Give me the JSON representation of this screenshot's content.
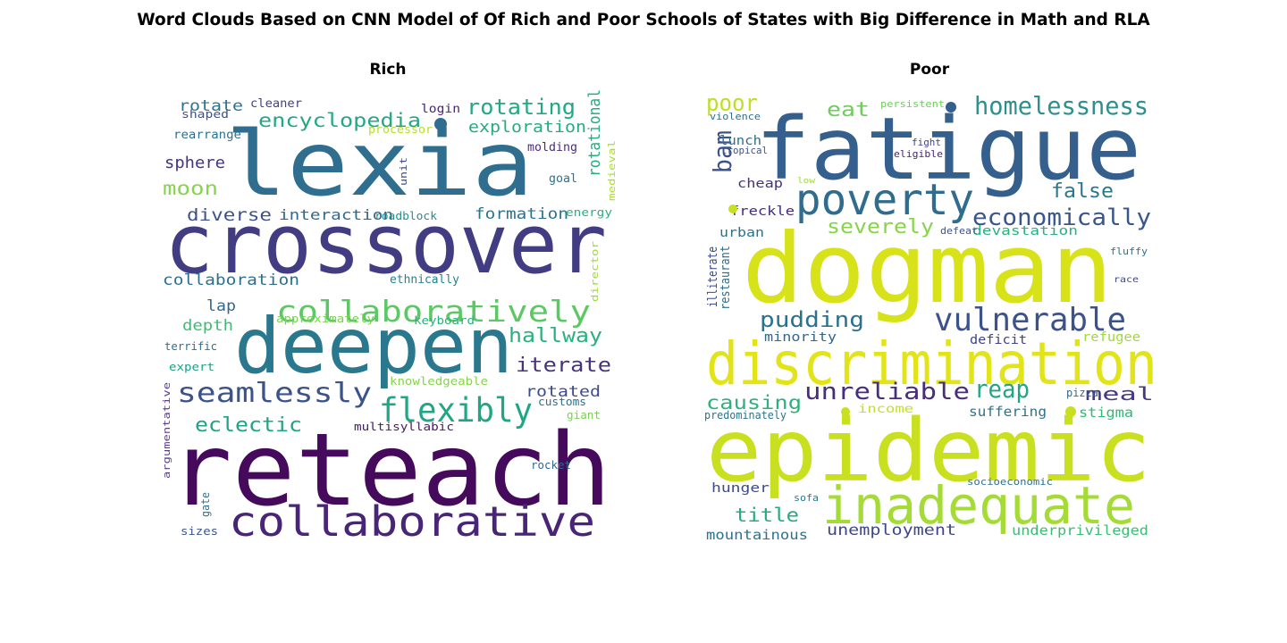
{
  "title": "Word Clouds Based on CNN Model of Of Rich and Poor Schools of States with Big Difference in Math and RLA",
  "chart_data": [
    {
      "type": "wordcloud",
      "title": "Rich",
      "words": [
        {
          "text": "reteach",
          "color": "#450a5b"
        },
        {
          "text": "lexia",
          "color": "#2f6e8e"
        },
        {
          "text": "crossover",
          "color": "#423c82"
        },
        {
          "text": "deepen",
          "color": "#2a788e"
        },
        {
          "text": "collaborative",
          "color": "#482576"
        },
        {
          "text": "collaboratively",
          "color": "#5cc863"
        },
        {
          "text": "flexibly",
          "color": "#21a685"
        },
        {
          "text": "seamlessly",
          "color": "#3b528b"
        },
        {
          "text": "encyclopedia",
          "color": "#23a884"
        },
        {
          "text": "rotating",
          "color": "#22a884"
        },
        {
          "text": "hallway",
          "color": "#2ab07f"
        },
        {
          "text": "iterate",
          "color": "#46337e"
        },
        {
          "text": "eclectic",
          "color": "#20a386"
        },
        {
          "text": "exploration",
          "color": "#25ab82"
        },
        {
          "text": "rotational",
          "color": "#27ad81"
        },
        {
          "text": "rotated",
          "color": "#3e4a89"
        },
        {
          "text": "moon",
          "color": "#86d549"
        },
        {
          "text": "diverse",
          "color": "#3b528b"
        },
        {
          "text": "sphere",
          "color": "#46337e"
        },
        {
          "text": "interaction",
          "color": "#31688e"
        },
        {
          "text": "formation",
          "color": "#2c728e"
        },
        {
          "text": "collaboration",
          "color": "#2d708e"
        },
        {
          "text": "depth",
          "color": "#3dbc74"
        },
        {
          "text": "lap",
          "color": "#31688e"
        },
        {
          "text": "rotate",
          "color": "#2c728e"
        },
        {
          "text": "cleaner",
          "color": "#404387"
        },
        {
          "text": "shaped",
          "color": "#3b528b"
        },
        {
          "text": "login",
          "color": "#482576"
        },
        {
          "text": "processor",
          "color": "#b5de2b"
        },
        {
          "text": "rearrange",
          "color": "#2c728e"
        },
        {
          "text": "molding",
          "color": "#472d7b"
        },
        {
          "text": "goal",
          "color": "#2c728e"
        },
        {
          "text": "unit",
          "color": "#3e4a89"
        },
        {
          "text": "medieval",
          "color": "#addc30"
        },
        {
          "text": "roadblock",
          "color": "#21918c"
        },
        {
          "text": "energy",
          "color": "#2ab07f"
        },
        {
          "text": "ethnically",
          "color": "#26828e"
        },
        {
          "text": "director",
          "color": "#a0da39"
        },
        {
          "text": "approximately",
          "color": "#7ad151"
        },
        {
          "text": "keyboard",
          "color": "#2ab07f"
        },
        {
          "text": "terrific",
          "color": "#2c728e"
        },
        {
          "text": "expert",
          "color": "#1fa088"
        },
        {
          "text": "knowledgeable",
          "color": "#86d549"
        },
        {
          "text": "customs",
          "color": "#2c728e"
        },
        {
          "text": "giant",
          "color": "#7ad151"
        },
        {
          "text": "multisyllabic",
          "color": "#48186a"
        },
        {
          "text": "argumentative",
          "color": "#5c3c8c"
        },
        {
          "text": "rocket",
          "color": "#31688e"
        },
        {
          "text": "gate",
          "color": "#2c728e"
        },
        {
          "text": "sizes",
          "color": "#39568c"
        }
      ]
    },
    {
      "type": "wordcloud",
      "title": "Poor",
      "words": [
        {
          "text": "epidemic",
          "color": "#c8e020"
        },
        {
          "text": "dogman",
          "color": "#d8e219"
        },
        {
          "text": "fatigue",
          "color": "#355f8d"
        },
        {
          "text": "discrimination",
          "color": "#e2e418"
        },
        {
          "text": "inadequate",
          "color": "#a5db36"
        },
        {
          "text": "poverty",
          "color": "#2f6c8e"
        },
        {
          "text": "vulnerable",
          "color": "#3b528b"
        },
        {
          "text": "homelessness",
          "color": "#2d908d"
        },
        {
          "text": "economically",
          "color": "#39568c"
        },
        {
          "text": "unreliable",
          "color": "#472d7b"
        },
        {
          "text": "pudding",
          "color": "#2c728e"
        },
        {
          "text": "reap",
          "color": "#21a685"
        },
        {
          "text": "severely",
          "color": "#86d549"
        },
        {
          "text": "false",
          "color": "#2a788e"
        },
        {
          "text": "bam",
          "color": "#3b528b"
        },
        {
          "text": "poor",
          "color": "#bddf26"
        },
        {
          "text": "eat",
          "color": "#6ccd5a"
        },
        {
          "text": "causing",
          "color": "#2db27d"
        },
        {
          "text": "meal",
          "color": "#443983"
        },
        {
          "text": "title",
          "color": "#25ab82"
        },
        {
          "text": "unemployment",
          "color": "#3f4788"
        },
        {
          "text": "mountainous",
          "color": "#2c728e"
        },
        {
          "text": "underprivileged",
          "color": "#3dbc74"
        },
        {
          "text": "hunger",
          "color": "#3e4a89"
        },
        {
          "text": "suffering",
          "color": "#2c728e"
        },
        {
          "text": "stigma",
          "color": "#35b779"
        },
        {
          "text": "refugee",
          "color": "#a0da39"
        },
        {
          "text": "deficit",
          "color": "#404387"
        },
        {
          "text": "devastation",
          "color": "#2ab07f"
        },
        {
          "text": "minority",
          "color": "#31688e"
        },
        {
          "text": "urban",
          "color": "#2c728e"
        },
        {
          "text": "illiterate",
          "color": "#3e4a89"
        },
        {
          "text": "restaurant",
          "color": "#2c728e"
        },
        {
          "text": "freckle",
          "color": "#472d7b"
        },
        {
          "text": "cheap",
          "color": "#46337e"
        },
        {
          "text": "lunch",
          "color": "#2d708e"
        },
        {
          "text": "tropical",
          "color": "#3b528b"
        },
        {
          "text": "violence",
          "color": "#2c728e"
        },
        {
          "text": "persistent",
          "color": "#6ccd5a"
        },
        {
          "text": "fight",
          "color": "#404387"
        },
        {
          "text": "eligible",
          "color": "#482576"
        },
        {
          "text": "low",
          "color": "#a0da39"
        },
        {
          "text": "fluffy",
          "color": "#2c728e"
        },
        {
          "text": "race",
          "color": "#3e4a89"
        },
        {
          "text": "defeat",
          "color": "#3b528b"
        },
        {
          "text": "income",
          "color": "#c2df23"
        },
        {
          "text": "pizza",
          "color": "#31688e"
        },
        {
          "text": "predominately",
          "color": "#2c728e"
        },
        {
          "text": "socioeconomic",
          "color": "#2c728e"
        },
        {
          "text": "sofa",
          "color": "#2a788e"
        }
      ]
    }
  ]
}
